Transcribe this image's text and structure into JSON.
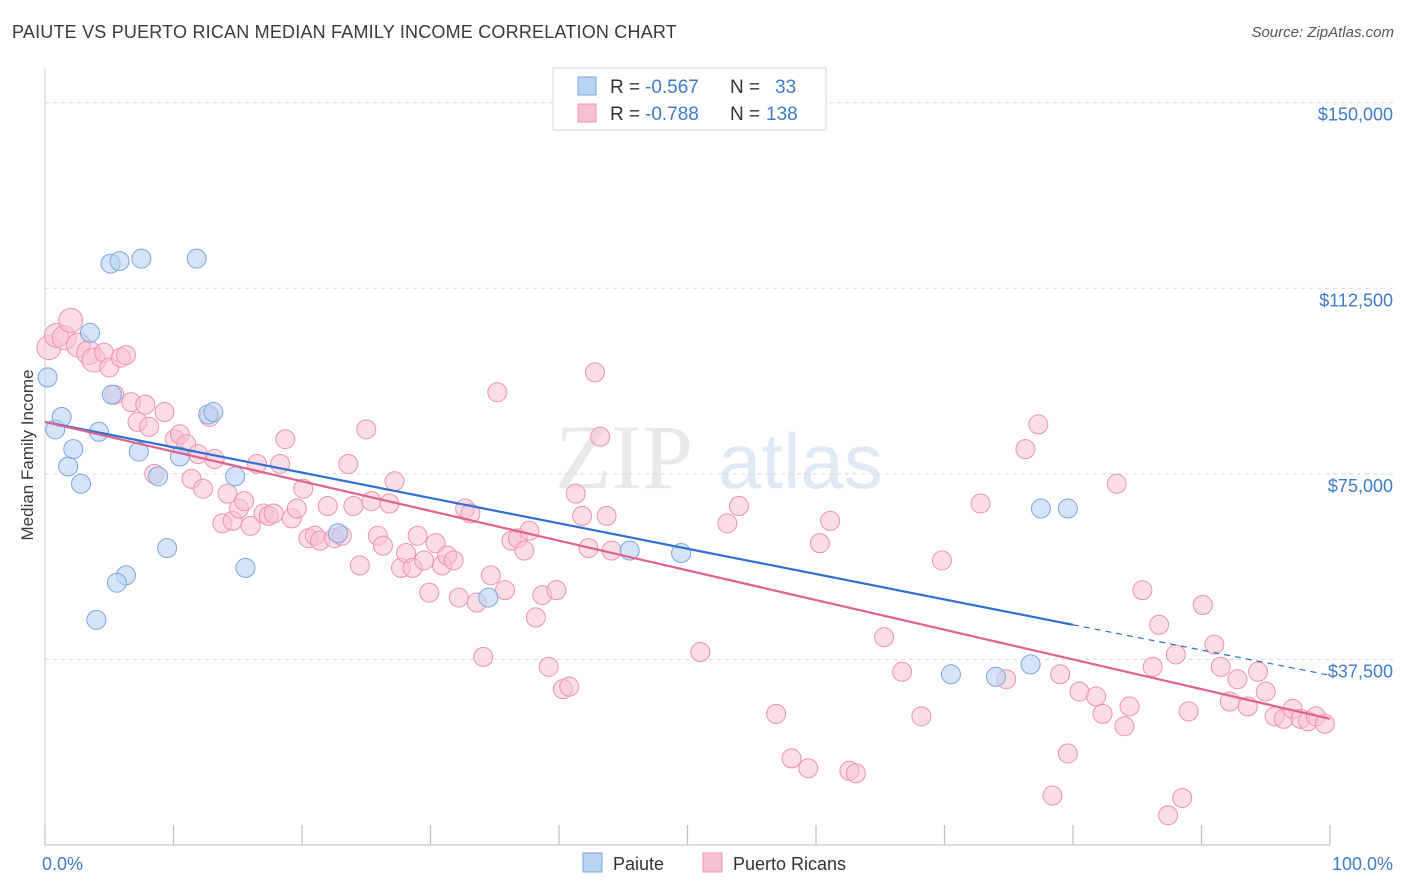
{
  "header": {
    "title": "PAIUTE VS PUERTO RICAN MEDIAN FAMILY INCOME CORRELATION CHART",
    "source": "Source: ZipAtlas.com"
  },
  "watermark": {
    "zip": "ZIP",
    "atlas": "atlas"
  },
  "colors": {
    "paiute_fill": "#b9d3f2",
    "paiute_stroke": "#7aa6e0",
    "paiute_line": "#2f6fd1",
    "pr_fill": "#f7c1d2",
    "pr_stroke": "#ec92b0",
    "pr_line": "#e0628e",
    "axis_label": "#3f7cc8"
  },
  "legend_box": {
    "rows": [
      {
        "r_label": "R =",
        "r_value": "-0.567",
        "n_label": "N =",
        "n_value": "33"
      },
      {
        "r_label": "R =",
        "r_value": "-0.788",
        "n_label": "N =",
        "n_value": "138"
      }
    ]
  },
  "bottom_legend": [
    "Paiute",
    "Puerto Ricans"
  ],
  "chart_data": {
    "type": "scatter",
    "ylabel": "Median Family Income",
    "xlim": [
      0,
      100
    ],
    "ylim": [
      0,
      155000
    ],
    "y_ticks": [
      37500,
      75000,
      112500,
      150000
    ],
    "y_tick_labels": [
      "$37,500",
      "$75,000",
      "$112,500",
      "$150,000"
    ],
    "x_tick_labels": [
      "0.0%",
      "100.0%"
    ],
    "grid": "horizontal dashed",
    "legend_position": "top-center",
    "series": [
      {
        "name": "Paiute",
        "trend": {
          "x": [
            0,
            80
          ],
          "y": [
            85500,
            44500
          ],
          "dashed_extension_to": [
            100,
            34300
          ]
        },
        "points": [
          [
            0.2,
            94500
          ],
          [
            0.8,
            84000
          ],
          [
            1.3,
            86500
          ],
          [
            1.8,
            76500
          ],
          [
            2.2,
            80000
          ],
          [
            2.8,
            73000
          ],
          [
            3.5,
            103500
          ],
          [
            4.2,
            83500
          ],
          [
            5.1,
            117500
          ],
          [
            5.8,
            118000
          ],
          [
            5.2,
            91000
          ],
          [
            7.5,
            118500
          ],
          [
            7.3,
            79500
          ],
          [
            8.8,
            74500
          ],
          [
            9.5,
            60000
          ],
          [
            10.5,
            78500
          ],
          [
            11.8,
            118500
          ],
          [
            12.7,
            87000
          ],
          [
            13.1,
            87500
          ],
          [
            14.8,
            74500
          ],
          [
            15.6,
            56000
          ],
          [
            4.0,
            45500
          ],
          [
            6.3,
            54500
          ],
          [
            5.6,
            53000
          ],
          [
            22.8,
            63000
          ],
          [
            34.5,
            50000
          ],
          [
            45.5,
            59500
          ],
          [
            49.5,
            59000
          ],
          [
            70.5,
            34500
          ],
          [
            74.0,
            34000
          ],
          [
            76.7,
            36500
          ],
          [
            77.5,
            68000
          ],
          [
            79.6,
            68000
          ]
        ]
      },
      {
        "name": "Puerto Ricans",
        "trend": {
          "x": [
            0,
            100
          ],
          "y": [
            85500,
            25500
          ]
        },
        "points": [
          [
            0.3,
            100500
          ],
          [
            0.9,
            103000
          ],
          [
            1.5,
            102500
          ],
          [
            2.0,
            106000
          ],
          [
            2.6,
            101000
          ],
          [
            3.4,
            99500
          ],
          [
            3.8,
            98000
          ],
          [
            4.6,
            99500
          ],
          [
            5.0,
            96500
          ],
          [
            5.4,
            91000
          ],
          [
            5.9,
            98500
          ],
          [
            6.3,
            99000
          ],
          [
            6.7,
            89500
          ],
          [
            7.2,
            85500
          ],
          [
            7.8,
            89000
          ],
          [
            8.1,
            84500
          ],
          [
            8.5,
            75000
          ],
          [
            9.3,
            87500
          ],
          [
            10.1,
            82000
          ],
          [
            10.5,
            83000
          ],
          [
            11.0,
            81000
          ],
          [
            11.4,
            74000
          ],
          [
            11.9,
            79000
          ],
          [
            12.3,
            72000
          ],
          [
            12.8,
            86500
          ],
          [
            13.2,
            78000
          ],
          [
            13.8,
            65000
          ],
          [
            14.2,
            71000
          ],
          [
            14.6,
            65500
          ],
          [
            15.1,
            68000
          ],
          [
            15.5,
            69500
          ],
          [
            16.0,
            64500
          ],
          [
            16.5,
            77000
          ],
          [
            17.0,
            67000
          ],
          [
            17.4,
            66500
          ],
          [
            17.8,
            67000
          ],
          [
            18.3,
            77000
          ],
          [
            18.7,
            82000
          ],
          [
            19.2,
            66000
          ],
          [
            19.6,
            68000
          ],
          [
            20.1,
            72000
          ],
          [
            20.5,
            62000
          ],
          [
            21.0,
            62500
          ],
          [
            21.4,
            61500
          ],
          [
            22.0,
            68500
          ],
          [
            22.5,
            62000
          ],
          [
            23.1,
            62500
          ],
          [
            23.6,
            77000
          ],
          [
            24.0,
            68500
          ],
          [
            24.5,
            56500
          ],
          [
            25.0,
            84000
          ],
          [
            25.4,
            69500
          ],
          [
            25.9,
            62500
          ],
          [
            26.3,
            60500
          ],
          [
            26.8,
            69000
          ],
          [
            27.2,
            73500
          ],
          [
            27.7,
            56000
          ],
          [
            28.1,
            59000
          ],
          [
            28.6,
            56000
          ],
          [
            29.0,
            62500
          ],
          [
            29.5,
            57500
          ],
          [
            29.9,
            51000
          ],
          [
            30.4,
            61000
          ],
          [
            30.9,
            56500
          ],
          [
            31.3,
            58500
          ],
          [
            31.8,
            57500
          ],
          [
            32.2,
            50000
          ],
          [
            32.7,
            68000
          ],
          [
            33.1,
            67000
          ],
          [
            33.6,
            49000
          ],
          [
            34.1,
            38000
          ],
          [
            34.7,
            54500
          ],
          [
            35.2,
            91500
          ],
          [
            35.8,
            51500
          ],
          [
            36.3,
            61500
          ],
          [
            36.8,
            62000
          ],
          [
            37.3,
            59500
          ],
          [
            37.7,
            63500
          ],
          [
            38.2,
            46000
          ],
          [
            38.7,
            50500
          ],
          [
            39.2,
            36000
          ],
          [
            39.8,
            51500
          ],
          [
            40.3,
            31500
          ],
          [
            40.8,
            32000
          ],
          [
            41.3,
            71000
          ],
          [
            41.8,
            66500
          ],
          [
            42.3,
            60000
          ],
          [
            42.8,
            95500
          ],
          [
            43.2,
            82500
          ],
          [
            43.7,
            66500
          ],
          [
            44.1,
            59500
          ],
          [
            51.0,
            39000
          ],
          [
            53.1,
            65000
          ],
          [
            54.0,
            68500
          ],
          [
            56.9,
            26500
          ],
          [
            58.1,
            17500
          ],
          [
            59.4,
            15500
          ],
          [
            60.3,
            61000
          ],
          [
            61.1,
            65500
          ],
          [
            62.6,
            15000
          ],
          [
            63.1,
            14500
          ],
          [
            65.3,
            42000
          ],
          [
            66.7,
            35000
          ],
          [
            68.2,
            26000
          ],
          [
            69.8,
            57500
          ],
          [
            72.8,
            69000
          ],
          [
            74.8,
            33500
          ],
          [
            76.3,
            80000
          ],
          [
            77.3,
            85000
          ],
          [
            78.4,
            10000
          ],
          [
            79.0,
            34500
          ],
          [
            79.6,
            18500
          ],
          [
            80.5,
            31000
          ],
          [
            81.8,
            30000
          ],
          [
            82.3,
            26500
          ],
          [
            83.4,
            73000
          ],
          [
            84.0,
            24000
          ],
          [
            84.4,
            28000
          ],
          [
            85.4,
            51500
          ],
          [
            86.2,
            36000
          ],
          [
            86.7,
            44500
          ],
          [
            87.4,
            6000
          ],
          [
            88.0,
            38500
          ],
          [
            88.5,
            9500
          ],
          [
            89.0,
            27000
          ],
          [
            90.1,
            48500
          ],
          [
            91.0,
            40500
          ],
          [
            91.5,
            36000
          ],
          [
            92.2,
            29000
          ],
          [
            92.8,
            33500
          ],
          [
            93.6,
            28000
          ],
          [
            94.4,
            35000
          ],
          [
            95.0,
            31000
          ],
          [
            95.7,
            26000
          ],
          [
            96.4,
            25500
          ],
          [
            97.1,
            27500
          ],
          [
            97.7,
            25500
          ],
          [
            98.3,
            25000
          ],
          [
            98.9,
            26000
          ],
          [
            99.6,
            24500
          ]
        ]
      }
    ]
  }
}
